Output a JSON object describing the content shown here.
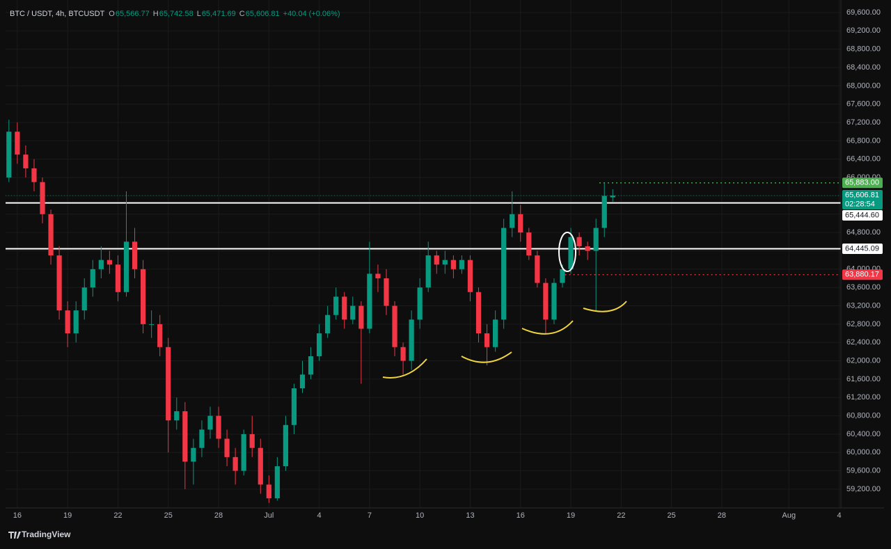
{
  "chart_data": {
    "type": "candlestick",
    "header": {
      "symbol": "BTC / USDT, 4h, BTCUSDT",
      "items": [
        {
          "label": "O",
          "value": "65,566.77"
        },
        {
          "label": "H",
          "value": "65,742.58"
        },
        {
          "label": "L",
          "value": "65,471.69"
        },
        {
          "label": "C",
          "value": "65,606.81"
        }
      ],
      "change": "+40.04 (+0.06%)"
    },
    "up_color": "#089981",
    "down_color": "#f23645",
    "grid": true,
    "x": [
      -0.5,
      0,
      0.5,
      1,
      1.5,
      2,
      2.5,
      3,
      3.5,
      4,
      4.5,
      5,
      5.5,
      6,
      6.5,
      7,
      7.5,
      8,
      8.5,
      9,
      9.5,
      10,
      10.5,
      11,
      11.5,
      12,
      12.5,
      13,
      13.5,
      14,
      14.5,
      15,
      15.5,
      16,
      16.5,
      17,
      17.5,
      18,
      18.5,
      19,
      19.5,
      20,
      20.5,
      21,
      21.5,
      22,
      22.5,
      23,
      23.5,
      24,
      24.5,
      25,
      25.5,
      26,
      26.5,
      27,
      27.5,
      28,
      28.5,
      29,
      29.5,
      30,
      30.5,
      31,
      31.5,
      32,
      32.5,
      33,
      33.5,
      34,
      34.5,
      35,
      35.5
    ],
    "open": [
      66000,
      67000,
      66500,
      66200,
      65900,
      65200,
      64300,
      63100,
      62600,
      63100,
      63600,
      64000,
      64200,
      64100,
      63500,
      64600,
      64000,
      62800,
      62800,
      62300,
      60700,
      60900,
      59800,
      60100,
      60500,
      60800,
      60300,
      59900,
      59600,
      60400,
      60100,
      59300,
      59000,
      59700,
      60600,
      61400,
      61700,
      62100,
      62600,
      63000,
      63400,
      62900,
      63200,
      62700,
      63900,
      63800,
      63200,
      62300,
      62000,
      62900,
      63600,
      64300,
      64100,
      64200,
      64000,
      64200,
      63500,
      62600,
      62300,
      62900,
      64900,
      65200,
      64800,
      64300,
      63700,
      62900,
      63700,
      64000,
      64700,
      64500,
      64400,
      64900,
      65566.77
    ],
    "high": [
      67260,
      67200,
      66700,
      66400,
      66000,
      65300,
      64500,
      63300,
      63300,
      63800,
      64200,
      64500,
      64400,
      64300,
      65700,
      64900,
      64200,
      63100,
      63000,
      62500,
      61200,
      61100,
      60300,
      60700,
      61000,
      61000,
      60500,
      60100,
      60500,
      60800,
      60300,
      59500,
      59900,
      60800,
      61500,
      62000,
      62300,
      62800,
      63200,
      63600,
      63500,
      63400,
      63300,
      64600,
      64100,
      64000,
      63300,
      62400,
      63100,
      63800,
      64600,
      64400,
      64400,
      64300,
      64300,
      64300,
      63600,
      62800,
      63100,
      65100,
      65700,
      65400,
      64900,
      64400,
      63800,
      63800,
      64100,
      64900,
      64800,
      64600,
      65100,
      65883,
      65742.58
    ],
    "low": [
      65900,
      66300,
      66000,
      65700,
      65000,
      64100,
      62900,
      62300,
      62400,
      62900,
      63400,
      63800,
      63900,
      63300,
      63400,
      63800,
      62600,
      62500,
      62100,
      60000,
      60500,
      59200,
      59300,
      59900,
      60300,
      60100,
      59700,
      59300,
      59500,
      59900,
      59100,
      58900,
      58950,
      59600,
      60400,
      61300,
      61600,
      62000,
      62500,
      62900,
      62700,
      62800,
      61500,
      62600,
      63500,
      63000,
      62100,
      61700,
      61800,
      62700,
      63500,
      63900,
      63900,
      63800,
      63900,
      63300,
      62400,
      61900,
      62200,
      62700,
      64700,
      64600,
      64200,
      63600,
      62600,
      62800,
      63600,
      63900,
      64300,
      64200,
      63100,
      64700,
      65471.69
    ],
    "close": [
      67000,
      66500,
      66200,
      65900,
      65200,
      64300,
      63100,
      62600,
      63100,
      63600,
      64000,
      64200,
      64100,
      63500,
      64600,
      64000,
      62800,
      62800,
      62300,
      60700,
      60900,
      59800,
      60100,
      60500,
      60800,
      60300,
      59900,
      59600,
      60400,
      60100,
      59300,
      59000,
      59700,
      60600,
      61400,
      61700,
      62100,
      62600,
      63000,
      63400,
      62900,
      63200,
      62700,
      63900,
      63800,
      63200,
      62300,
      62000,
      62900,
      63600,
      64300,
      64100,
      64200,
      64000,
      64200,
      63500,
      62600,
      62300,
      62900,
      64900,
      65200,
      64800,
      64300,
      63700,
      62900,
      63700,
      64000,
      64700,
      64500,
      64400,
      64900,
      65600,
      65606.81
    ],
    "xlim": [
      -0.7,
      49.1
    ],
    "xticks": [
      {
        "value": 0,
        "label": "16"
      },
      {
        "value": 3,
        "label": "19"
      },
      {
        "value": 6,
        "label": "22"
      },
      {
        "value": 9,
        "label": "25"
      },
      {
        "value": 12,
        "label": "28"
      },
      {
        "value": 15,
        "label": "Jul"
      },
      {
        "value": 18,
        "label": "4"
      },
      {
        "value": 21,
        "label": "7"
      },
      {
        "value": 24,
        "label": "10"
      },
      {
        "value": 27,
        "label": "13"
      },
      {
        "value": 30,
        "label": "16"
      },
      {
        "value": 33,
        "label": "19"
      },
      {
        "value": 36,
        "label": "22"
      },
      {
        "value": 39,
        "label": "25"
      },
      {
        "value": 42,
        "label": "28"
      },
      {
        "value": 46,
        "label": "Aug"
      },
      {
        "value": 49,
        "label": "4"
      }
    ],
    "ylim": [
      58790,
      69873
    ],
    "yticks": [
      {
        "value": 59200,
        "label": "59,200.00"
      },
      {
        "value": 59600,
        "label": "59,600.00"
      },
      {
        "value": 60000,
        "label": "60,000.00"
      },
      {
        "value": 60400,
        "label": "60,400.00"
      },
      {
        "value": 60800,
        "label": "60,800.00"
      },
      {
        "value": 61200,
        "label": "61,200.00"
      },
      {
        "value": 61600,
        "label": "61,600.00"
      },
      {
        "value": 62000,
        "label": "62,000.00"
      },
      {
        "value": 62400,
        "label": "62,400.00"
      },
      {
        "value": 62800,
        "label": "62,800.00"
      },
      {
        "value": 63200,
        "label": "63,200.00"
      },
      {
        "value": 63600,
        "label": "63,600.00"
      },
      {
        "value": 64000,
        "label": "64,000.00"
      },
      {
        "value": 64400,
        "label": "64,400.00"
      },
      {
        "value": 64800,
        "label": "64,800.00"
      },
      {
        "value": 65200,
        "label": "65,200.00"
      },
      {
        "value": 65600,
        "label": "65,600.00"
      },
      {
        "value": 66000,
        "label": "66,000.00"
      },
      {
        "value": 66400,
        "label": "66,400.00"
      },
      {
        "value": 66800,
        "label": "66,800.00"
      },
      {
        "value": 67200,
        "label": "67,200.00"
      },
      {
        "value": 67600,
        "label": "67,600.00"
      },
      {
        "value": 68000,
        "label": "68,000.00"
      },
      {
        "value": 68400,
        "label": "68,400.00"
      },
      {
        "value": 68800,
        "label": "68,800.00"
      },
      {
        "value": 69200,
        "label": "69,200.00"
      },
      {
        "value": 69600,
        "label": "69,600.00"
      }
    ],
    "levels": [
      {
        "value": 65883.0,
        "label": "65,883.00",
        "color": "#4caf50",
        "style": "dotted",
        "from": 34.7
      },
      {
        "value": 65444.6,
        "label": "65,444.60",
        "color": "#ffffff",
        "style": "solid"
      },
      {
        "value": 64445.09,
        "label": "64,445.09",
        "color": "#ffffff",
        "style": "solid"
      },
      {
        "value": 63880.17,
        "label": "63,880.17",
        "color": "#f23645",
        "style": "dotted",
        "from": 32.4
      }
    ],
    "current_price": {
      "value": 65606.81,
      "label": "65,606.81",
      "countdown": "02:28:54",
      "color": "#089981"
    },
    "brand": "TradingView"
  }
}
